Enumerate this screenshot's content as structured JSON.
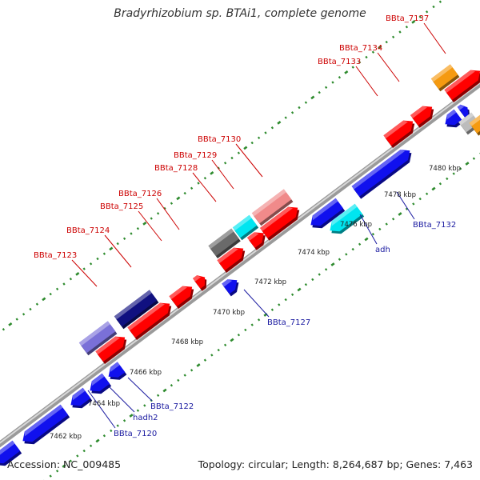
{
  "title": "Bradyrhizobium sp. BTAi1, complete genome",
  "footer": {
    "accession": "Accession: NC_009485",
    "summary": "Topology: circular; Length: 8,264,687 bp; Genes: 7,463"
  },
  "colors": {
    "axis": "#8c8c8c",
    "tick_dot": "#2e8b2e",
    "top_label": "#cc0000",
    "bottom_label": "#1a1aa0",
    "red": "#ff0000",
    "blue": "#1010ee",
    "cyan": "#00e5f0",
    "navy": "#101080",
    "slate": "#7a70d8",
    "gray": "#6a6a6a",
    "pink": "#f08a8a",
    "orange": "#f59a10",
    "silver": "#bcbcbc"
  },
  "scale_ticks": [
    "7462 kbp",
    "7464 kbp",
    "7466 kbp",
    "7468 kbp",
    "7470 kbp",
    "7472 kbp",
    "7474 kbp",
    "7476 kbp",
    "7478 kbp",
    "7480 kbp"
  ],
  "top_labels": [
    "BBta_7123",
    "BBta_7124",
    "BBta_7125",
    "BBta_7126",
    "BBta_7128",
    "BBta_7129",
    "BBta_7130",
    "BBta_7133",
    "BBta_7134",
    "BBta_7137"
  ],
  "bottom_labels": [
    "BBta_7120",
    "hadh2",
    "BBta_7122",
    "BBta_7127",
    "adh",
    "BBta_7132"
  ],
  "feature_colors": [
    "blue",
    "red",
    "cyan",
    "navy",
    "slate",
    "gray",
    "pink",
    "orange",
    "silver"
  ]
}
